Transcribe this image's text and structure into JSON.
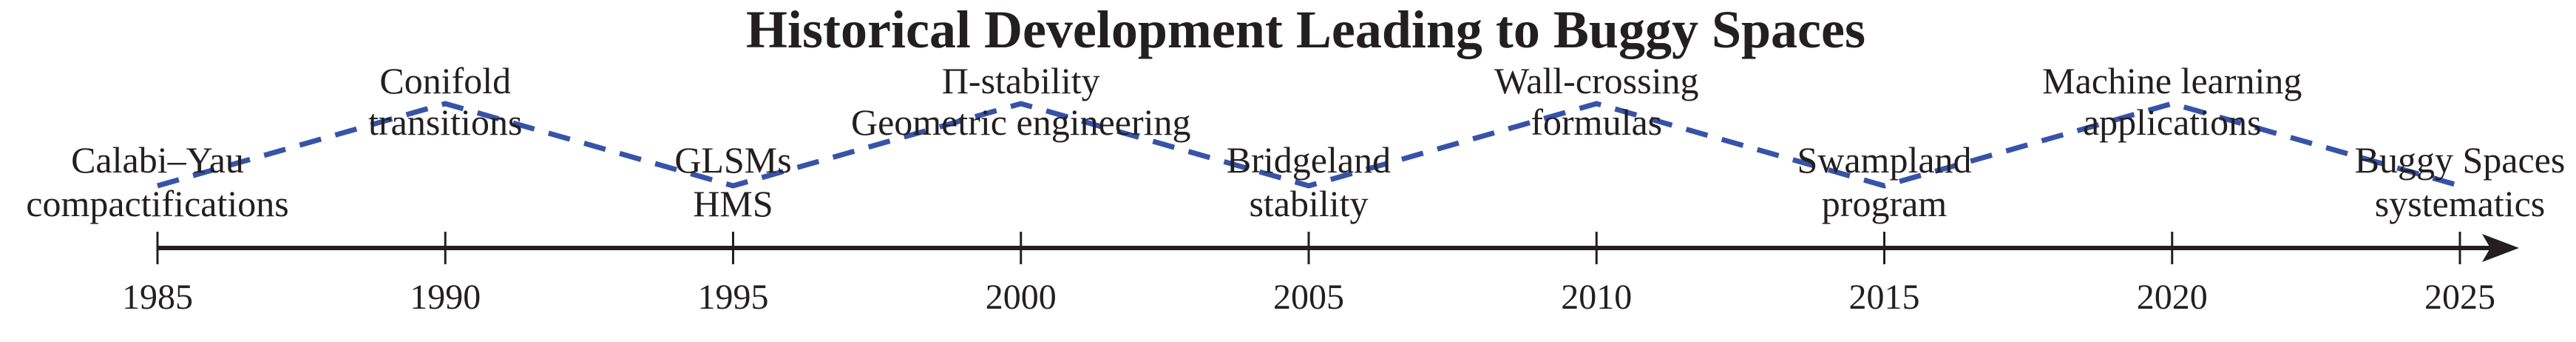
{
  "chart_data": {
    "type": "timeline",
    "title": "Historical Development Leading to Buggy Spaces",
    "xlim": [
      1985,
      2025
    ],
    "xticks": [
      "1985",
      "1990",
      "1995",
      "2000",
      "2005",
      "2010",
      "2015",
      "2020",
      "2025"
    ],
    "axis_color": "#231f20",
    "connector": {
      "style": "dashed",
      "color": "#3653a8"
    },
    "events": [
      {
        "year": 1985,
        "lines": [
          "Calabi–Yau",
          "compactifications"
        ],
        "position": "low"
      },
      {
        "year": 1990,
        "lines": [
          "Conifold",
          "transitions"
        ],
        "position": "high"
      },
      {
        "year": 1995,
        "lines": [
          "GLSMs",
          "HMS"
        ],
        "position": "low"
      },
      {
        "year": 2000,
        "lines": [
          "Π-stability",
          "Geometric engineering"
        ],
        "position": "high"
      },
      {
        "year": 2005,
        "lines": [
          "Bridgeland",
          "stability"
        ],
        "position": "low"
      },
      {
        "year": 2010,
        "lines": [
          "Wall-crossing",
          "formulas"
        ],
        "position": "high"
      },
      {
        "year": 2015,
        "lines": [
          "Swampland",
          "program"
        ],
        "position": "low"
      },
      {
        "year": 2020,
        "lines": [
          "Machine learning",
          "applications"
        ],
        "position": "high"
      },
      {
        "year": 2025,
        "lines": [
          "Buggy Spaces",
          "systematics"
        ],
        "position": "low"
      }
    ]
  }
}
